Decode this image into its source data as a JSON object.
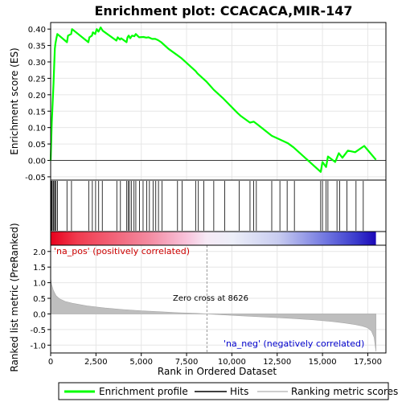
{
  "chart_data": {
    "type": "line",
    "title": "Enrichment plot: CCACACA,MIR-147",
    "xlabel": "Rank in Ordered Dataset",
    "top_panel": {
      "ylabel": "Enrichment score (ES)",
      "ylim": [
        -0.06,
        0.42
      ],
      "yticks": [
        -0.05,
        0.0,
        0.05,
        0.1,
        0.15,
        0.2,
        0.25,
        0.3,
        0.35,
        0.4
      ],
      "ytick_labels": [
        "-0.05",
        "0.00",
        "0.05",
        "0.10",
        "0.15",
        "0.20",
        "0.25",
        "0.30",
        "0.35",
        "0.40"
      ],
      "series": [
        {
          "name": "Enrichment profile",
          "color": "#00ff00",
          "x": [
            0,
            60,
            110,
            160,
            200,
            230,
            260,
            310,
            370,
            900,
            960,
            1130,
            1180,
            2080,
            2140,
            2280,
            2330,
            2460,
            2540,
            2640,
            2760,
            2870,
            3630,
            3700,
            3830,
            3890,
            4190,
            4240,
            4310,
            4390,
            4490,
            4620,
            4700,
            4880,
            5120,
            5280,
            5400,
            5600,
            5770,
            5930,
            6100,
            6500,
            7000,
            7200,
            8000,
            8100,
            8400,
            8600,
            9000,
            9500,
            10300,
            10500,
            11000,
            11200,
            11400,
            12200,
            12600,
            13100,
            13400,
            14900,
            15000,
            15200,
            15300,
            15700,
            15900,
            16100,
            16400,
            16800,
            17300,
            17950
          ],
          "y": [
            0.0,
            0.115,
            0.175,
            0.235,
            0.295,
            0.34,
            0.355,
            0.37,
            0.385,
            0.36,
            0.38,
            0.385,
            0.4,
            0.36,
            0.375,
            0.38,
            0.39,
            0.385,
            0.4,
            0.392,
            0.405,
            0.395,
            0.365,
            0.375,
            0.368,
            0.372,
            0.36,
            0.375,
            0.38,
            0.372,
            0.38,
            0.378,
            0.385,
            0.375,
            0.376,
            0.374,
            0.375,
            0.37,
            0.37,
            0.366,
            0.36,
            0.34,
            0.32,
            0.312,
            0.272,
            0.265,
            0.25,
            0.24,
            0.215,
            0.19,
            0.145,
            0.135,
            0.115,
            0.118,
            0.11,
            0.075,
            0.065,
            0.052,
            0.04,
            -0.035,
            -0.005,
            -0.02,
            0.012,
            -0.005,
            0.022,
            0.008,
            0.03,
            0.025,
            0.044,
            0.002
          ]
        }
      ]
    },
    "hits": [
      40,
      80,
      140,
      180,
      240,
      300,
      380,
      900,
      1150,
      2100,
      2300,
      2480,
      2650,
      2850,
      3650,
      3850,
      4200,
      4280,
      4350,
      4450,
      4600,
      4700,
      4900,
      5100,
      5300,
      5450,
      5650,
      5800,
      5950,
      6150,
      7000,
      7250,
      8000,
      8150,
      8450,
      9000,
      9600,
      10400,
      11000,
      11200,
      11350,
      12200,
      12650,
      13050,
      13450,
      14900,
      15000,
      15200,
      15300,
      15800,
      15950,
      16350,
      16850,
      17250
    ],
    "bottom_panel": {
      "ylabel": "Ranked list metric (PreRanked)",
      "ylim": [
        -1.25,
        2.2
      ],
      "yticks": [
        -1.0,
        -0.5,
        0.0,
        0.5,
        1.0,
        1.5,
        2.0
      ],
      "ytick_labels": [
        "-1.0",
        "-0.5",
        "0.0",
        "0.5",
        "1.0",
        "1.5",
        "2.0"
      ],
      "metric_curve": {
        "x": [
          0,
          50,
          150,
          300,
          500,
          800,
          1200,
          2000,
          3000,
          4000,
          5000,
          6000,
          7000,
          8000,
          8626,
          9500,
          10500,
          11500,
          12500,
          13500,
          14500,
          15500,
          16200,
          16800,
          17200,
          17500,
          17700,
          17850,
          17950
        ],
        "y": [
          1.15,
          0.95,
          0.75,
          0.58,
          0.48,
          0.4,
          0.34,
          0.26,
          0.19,
          0.14,
          0.1,
          0.07,
          0.04,
          0.02,
          0.0,
          -0.03,
          -0.06,
          -0.09,
          -0.12,
          -0.15,
          -0.19,
          -0.24,
          -0.29,
          -0.34,
          -0.39,
          -0.45,
          -0.55,
          -0.75,
          -1.2
        ]
      },
      "pos_label": "'na_pos' (positively correlated)",
      "neg_label": "'na_neg' (negatively correlated)",
      "zero_cross_label": "Zero cross at 8626",
      "zero_cross": 8626
    },
    "xlim": [
      0,
      18500
    ],
    "xticks": [
      0,
      2500,
      5000,
      7500,
      10000,
      12500,
      15000,
      17500
    ],
    "xtick_labels": [
      "0",
      "2,500",
      "5,000",
      "7,500",
      "10,000",
      "12,500",
      "15,000",
      "17,500"
    ],
    "n_genes": 17950,
    "legend": {
      "placement": "bottom",
      "items": [
        {
          "label": "Enrichment profile",
          "color": "#00ff00"
        },
        {
          "label": "Hits",
          "color": "#000000"
        },
        {
          "label": "Ranking metric scores",
          "color": "#bebebe"
        }
      ]
    }
  }
}
